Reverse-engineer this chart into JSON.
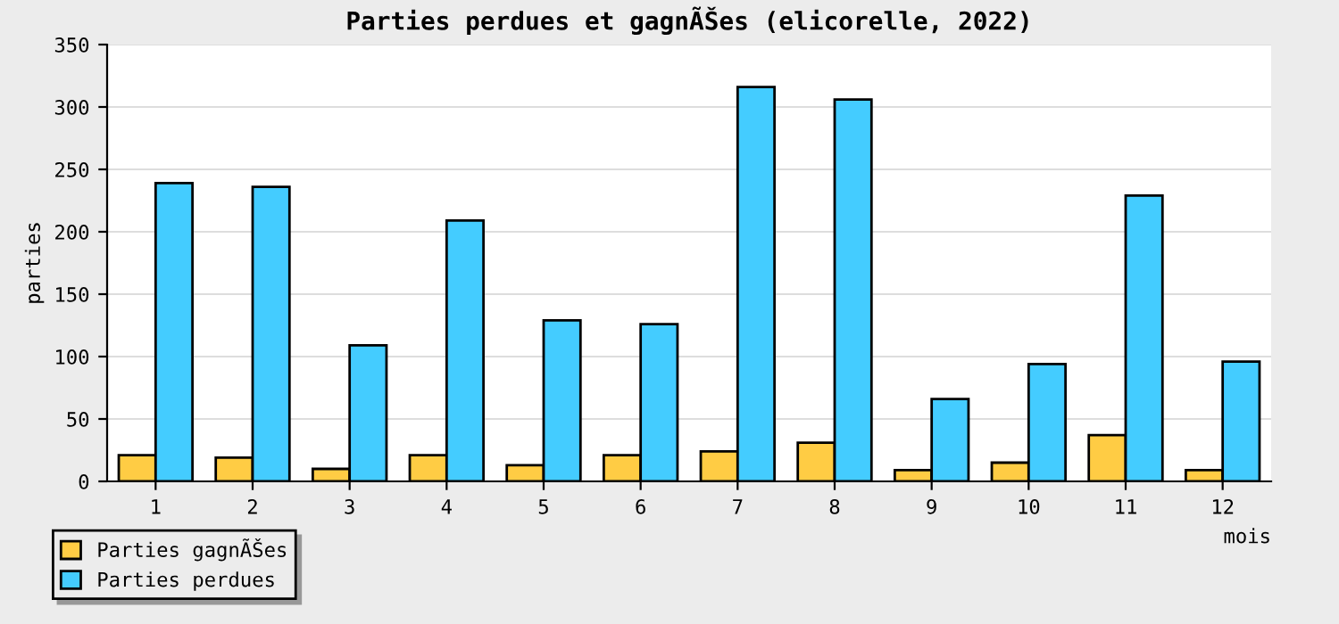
{
  "chart_data": {
    "type": "bar",
    "title": "Parties perdues et gagnÃŠes (elicorelle, 2022)",
    "xlabel": "mois",
    "ylabel": "parties",
    "categories": [
      "1",
      "2",
      "3",
      "4",
      "5",
      "6",
      "7",
      "8",
      "9",
      "10",
      "11",
      "12"
    ],
    "series": [
      {
        "name": "Parties gagnÃŠes",
        "color": "#ffcc44",
        "values": [
          21,
          19,
          10,
          21,
          13,
          21,
          24,
          31,
          9,
          15,
          37,
          9
        ]
      },
      {
        "name": "Parties perdues",
        "color": "#44ccff",
        "values": [
          239,
          236,
          109,
          209,
          129,
          126,
          316,
          306,
          66,
          94,
          229,
          96
        ]
      }
    ],
    "ylim": [
      0,
      350
    ],
    "yticks": [
      0,
      50,
      100,
      150,
      200,
      250,
      300,
      350
    ],
    "grid": "y",
    "legend": "bottom left"
  }
}
